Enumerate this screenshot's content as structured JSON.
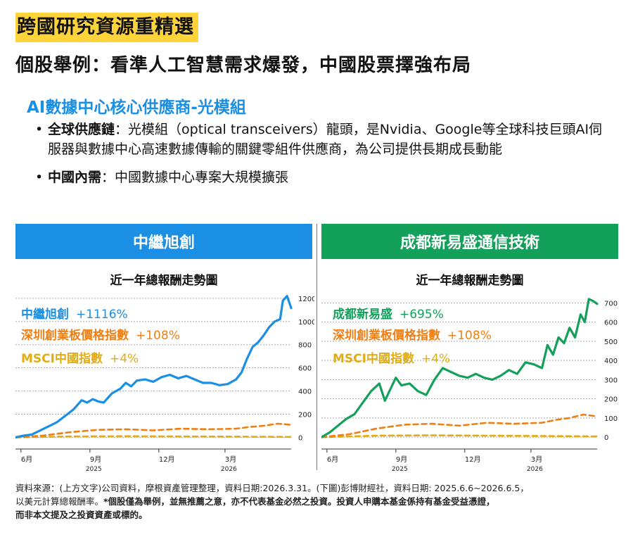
{
  "header": {
    "title": "跨國研究資源重精選",
    "subtitle": "個股舉例：看準人工智慧需求爆發，中國股票擇強布局"
  },
  "section": {
    "heading": "AI數據中心核心供應商-光模組",
    "bullets": [
      {
        "label": "全球供應鏈",
        "text": "：光模組（optical transceivers）龍頭，是Nvidia、Google等全球科技巨頭AI伺服器與數據中心高速數據傳輸的關鍵零組件供應商，為公司提供長期成長動能"
      },
      {
        "label": "中國內需",
        "text": "：中國數據中心專案大規模擴張"
      }
    ]
  },
  "footer": {
    "line1": "資料來源：(上方文字)公司資料，摩根資產管理整理，資料日期:2026.3.31。(下圖)彭博財經社，資料日期:   2025.6.6~2026.6.5，",
    "line2_plain": "以美元計算總報酬率。",
    "line2_bold": "*個股僅為舉例，並無推薦之意，亦不代表基金必然之投資。投資人申購本基金係持有基金受益憑證，",
    "line3_bold": "而非本文提及之投資資產或標的。"
  },
  "colors": {
    "blue": "#1a8fe3",
    "green": "#13a05b",
    "orange": "#f07f13",
    "gold": "#e2ac13"
  },
  "chart_data": [
    {
      "type": "line",
      "panel_title": "中繼旭創",
      "title": "近一年總報酬走勢圖",
      "x_ticks": [
        "6月",
        "9月",
        "12月",
        "3月"
      ],
      "x_years": [
        "2025",
        "2026"
      ],
      "ylim": [
        -40,
        1260
      ],
      "y_ticks": [
        0,
        200,
        400,
        600,
        800,
        1000,
        1200
      ],
      "grid": true,
      "legend_position": "top-left",
      "series": [
        {
          "name": "中繼旭創",
          "label": "+1116%",
          "color": "#1a8fe3",
          "x": [
            0,
            0.03,
            0.06,
            0.09,
            0.12,
            0.15,
            0.18,
            0.21,
            0.24,
            0.26,
            0.28,
            0.3,
            0.32,
            0.35,
            0.38,
            0.4,
            0.42,
            0.44,
            0.47,
            0.5,
            0.53,
            0.56,
            0.59,
            0.62,
            0.65,
            0.68,
            0.71,
            0.74,
            0.77,
            0.8,
            0.82,
            0.84,
            0.86,
            0.88,
            0.9,
            0.92,
            0.94,
            0.96,
            0.97,
            0.985,
            1.0
          ],
          "values": [
            0,
            15,
            25,
            60,
            95,
            130,
            185,
            240,
            320,
            300,
            330,
            310,
            300,
            380,
            420,
            470,
            440,
            490,
            500,
            480,
            520,
            540,
            510,
            530,
            500,
            470,
            470,
            450,
            460,
            500,
            560,
            680,
            780,
            820,
            880,
            950,
            1000,
            1020,
            1180,
            1220,
            1116
          ]
        },
        {
          "name": "深圳創業板價格指數",
          "label": "+108%",
          "color": "#f07f13",
          "x": [
            0,
            0.1,
            0.2,
            0.3,
            0.4,
            0.5,
            0.6,
            0.7,
            0.8,
            0.85,
            0.9,
            0.95,
            1.0
          ],
          "values": [
            0,
            15,
            45,
            65,
            70,
            60,
            75,
            70,
            75,
            90,
            100,
            118,
            108
          ]
        },
        {
          "name": "MSCI中國指數",
          "label": "+4%",
          "color": "#e2ac13",
          "x": [
            0,
            0.2,
            0.4,
            0.6,
            0.8,
            1.0
          ],
          "values": [
            0,
            8,
            10,
            8,
            6,
            4
          ]
        }
      ]
    },
    {
      "type": "line",
      "panel_title": "成都新易盛通信技術",
      "title": "近一年總報酬走勢圖",
      "x_ticks": [
        "6月",
        "9月",
        "12月",
        "3月"
      ],
      "x_years": [
        "2025",
        "2026"
      ],
      "ylim": [
        -25,
        760
      ],
      "y_ticks": [
        0,
        100,
        200,
        300,
        400,
        500,
        600,
        700
      ],
      "grid": true,
      "legend_position": "top-left",
      "series": [
        {
          "name": "成都新易盛",
          "label": "+695%",
          "color": "#13a05b",
          "x": [
            0,
            0.03,
            0.06,
            0.09,
            0.12,
            0.15,
            0.18,
            0.21,
            0.23,
            0.25,
            0.27,
            0.29,
            0.32,
            0.35,
            0.38,
            0.41,
            0.44,
            0.47,
            0.5,
            0.53,
            0.56,
            0.59,
            0.62,
            0.65,
            0.68,
            0.71,
            0.74,
            0.77,
            0.8,
            0.82,
            0.84,
            0.86,
            0.88,
            0.9,
            0.92,
            0.94,
            0.955,
            0.97,
            0.985,
            1.0
          ],
          "values": [
            0,
            25,
            60,
            95,
            120,
            180,
            240,
            280,
            190,
            250,
            310,
            270,
            280,
            240,
            220,
            300,
            360,
            340,
            320,
            310,
            330,
            310,
            300,
            320,
            350,
            330,
            390,
            380,
            360,
            480,
            430,
            520,
            490,
            570,
            520,
            640,
            600,
            720,
            710,
            695
          ]
        },
        {
          "name": "深圳創業板價格指數",
          "label": "+108%",
          "color": "#f07f13",
          "x": [
            0,
            0.1,
            0.2,
            0.3,
            0.4,
            0.5,
            0.6,
            0.7,
            0.8,
            0.85,
            0.9,
            0.95,
            1.0
          ],
          "values": [
            0,
            15,
            45,
            65,
            70,
            60,
            75,
            70,
            75,
            90,
            100,
            118,
            108
          ]
        },
        {
          "name": "MSCI中國指數",
          "label": "+4%",
          "color": "#e2ac13",
          "x": [
            0,
            0.2,
            0.4,
            0.6,
            0.8,
            1.0
          ],
          "values": [
            0,
            8,
            10,
            8,
            6,
            4
          ]
        }
      ]
    }
  ]
}
